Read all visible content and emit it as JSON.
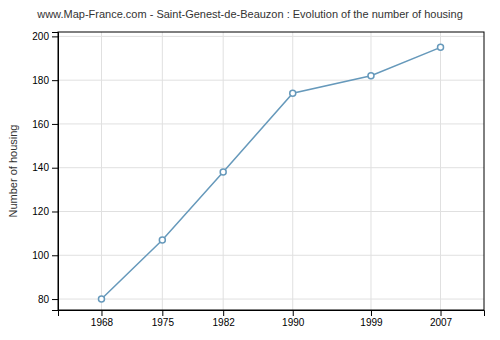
{
  "chart_data": {
    "type": "line",
    "title": "www.Map-France.com - Saint-Genest-de-Beauzon : Evolution of the number of housing",
    "ylabel": "Number of housing",
    "x": [
      1968,
      1975,
      1982,
      1990,
      1999,
      2007
    ],
    "values": [
      80,
      107,
      138,
      174,
      182,
      195
    ],
    "xlim": [
      1963,
      2012
    ],
    "xticks": [
      1968,
      1975,
      1982,
      1990,
      1999,
      2007
    ],
    "ylim": [
      75,
      202
    ],
    "yticks": [
      80,
      100,
      120,
      140,
      160,
      180,
      200
    ],
    "color": "#6699bb",
    "marker": "circle",
    "grid": true
  }
}
